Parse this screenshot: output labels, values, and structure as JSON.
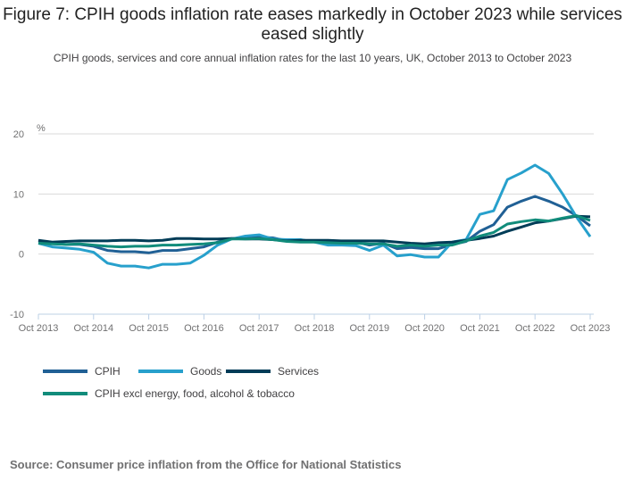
{
  "title": "Figure 7: CPIH goods inflation rate eases markedly in October 2023 while services eased slightly",
  "subtitle": "CPIH goods, services and core annual inflation rates for the last 10 years, UK, October 2013 to October 2023",
  "source": "Source: Consumer price inflation from the Office for National Statistics",
  "chart_data": {
    "type": "line",
    "ylabel": "%",
    "ylim": [
      -10,
      20
    ],
    "yticks": [
      "20",
      "10",
      "0",
      "-10"
    ],
    "ytick_values": [
      20,
      10,
      0,
      -10
    ],
    "xticks": [
      "Oct 2013",
      "Oct 2014",
      "Oct 2015",
      "Oct 2016",
      "Oct 2017",
      "Oct 2018",
      "Oct 2019",
      "Oct 2020",
      "Oct 2021",
      "Oct 2022",
      "Oct 2023"
    ],
    "x_quarters": [
      "Oct 2013",
      "Jan 2014",
      "Apr 2014",
      "Jul 2014",
      "Oct 2014",
      "Jan 2015",
      "Apr 2015",
      "Jul 2015",
      "Oct 2015",
      "Jan 2016",
      "Apr 2016",
      "Jul 2016",
      "Oct 2016",
      "Jan 2017",
      "Apr 2017",
      "Jul 2017",
      "Oct 2017",
      "Jan 2018",
      "Apr 2018",
      "Jul 2018",
      "Oct 2018",
      "Jan 2019",
      "Apr 2019",
      "Jul 2019",
      "Oct 2019",
      "Jan 2020",
      "Apr 2020",
      "Jul 2020",
      "Oct 2020",
      "Jan 2021",
      "Apr 2021",
      "Jul 2021",
      "Oct 2021",
      "Jan 2022",
      "Apr 2022",
      "Jul 2022",
      "Oct 2022",
      "Jan 2023",
      "Apr 2023",
      "Jul 2023",
      "Oct 2023"
    ],
    "series": [
      {
        "name": "CPIH",
        "color": "#206095",
        "values": [
          2.2,
          1.8,
          1.6,
          1.6,
          1.3,
          0.6,
          0.4,
          0.4,
          0.2,
          0.6,
          0.6,
          0.9,
          1.2,
          2.0,
          2.6,
          2.6,
          2.8,
          2.7,
          2.2,
          2.3,
          2.2,
          1.8,
          2.0,
          2.0,
          1.5,
          1.8,
          0.9,
          1.1,
          0.9,
          0.9,
          1.6,
          2.1,
          3.8,
          4.9,
          7.8,
          8.8,
          9.6,
          8.8,
          7.8,
          6.4,
          4.7
        ]
      },
      {
        "name": "Goods",
        "color": "#27a0cc",
        "values": [
          1.8,
          1.2,
          1.0,
          0.8,
          0.3,
          -1.5,
          -2.0,
          -2.0,
          -2.3,
          -1.7,
          -1.7,
          -1.5,
          -0.2,
          1.5,
          2.5,
          3.0,
          3.2,
          2.5,
          2.4,
          2.4,
          2.0,
          1.5,
          1.5,
          1.4,
          0.6,
          1.5,
          -0.3,
          -0.1,
          -0.5,
          -0.5,
          2.0,
          2.4,
          6.6,
          7.2,
          12.4,
          13.5,
          14.8,
          13.4,
          10.0,
          6.2,
          2.9
        ]
      },
      {
        "name": "Services",
        "color": "#003c57",
        "values": [
          2.3,
          2.0,
          2.1,
          2.2,
          2.2,
          2.2,
          2.3,
          2.3,
          2.2,
          2.3,
          2.6,
          2.6,
          2.5,
          2.5,
          2.6,
          2.5,
          2.5,
          2.4,
          2.2,
          2.3,
          2.3,
          2.3,
          2.2,
          2.2,
          2.2,
          2.2,
          2.0,
          1.8,
          1.7,
          1.9,
          2.0,
          2.3,
          2.6,
          3.0,
          3.8,
          4.5,
          5.2,
          5.5,
          5.9,
          6.3,
          6.2
        ]
      },
      {
        "name": "CPIH excl energy, food, alcohol & tobacco",
        "color": "#118c7b",
        "values": [
          1.8,
          1.7,
          1.6,
          1.7,
          1.5,
          1.3,
          1.2,
          1.3,
          1.3,
          1.5,
          1.5,
          1.6,
          1.7,
          1.9,
          2.5,
          2.5,
          2.6,
          2.4,
          2.1,
          2.0,
          2.0,
          1.9,
          1.8,
          1.8,
          1.7,
          1.7,
          1.3,
          1.5,
          1.3,
          1.5,
          1.5,
          2.2,
          3.0,
          3.6,
          5.0,
          5.4,
          5.7,
          5.5,
          6.0,
          6.4,
          5.6
        ]
      }
    ]
  }
}
